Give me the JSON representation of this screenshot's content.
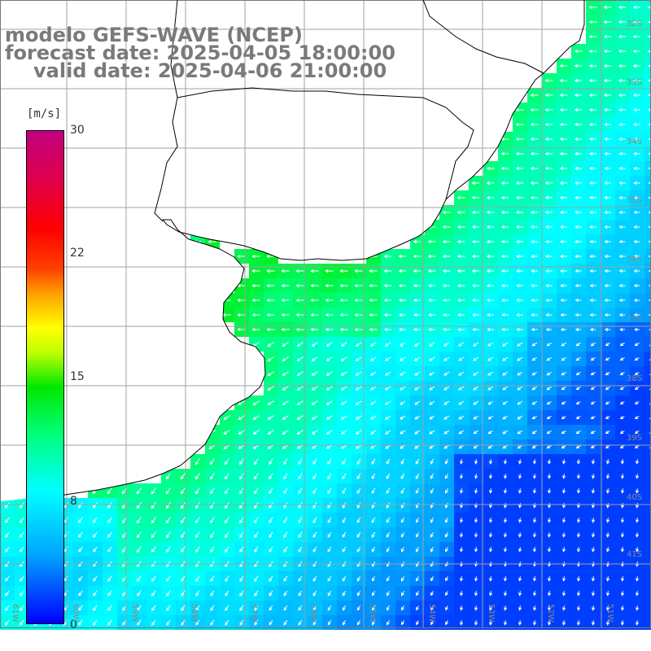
{
  "title": {
    "line1": "modelo GEFS-WAVE (NCEP)",
    "line2": "forecast date: 2025-04-05 18:00:00",
    "line3": "valid date: 2025-04-06 21:00:00"
  },
  "colorbar": {
    "unit": "[m/s]",
    "ticks": [
      "30",
      "22",
      "15",
      "8",
      "0"
    ],
    "min": 0,
    "max": 30
  },
  "map": {
    "lon_labels": [
      "61W",
      "60W",
      "59W",
      "58W",
      "57W",
      "56W",
      "55W",
      "54W",
      "53W",
      "52W",
      "51W"
    ],
    "lat_labels": [
      "32S",
      "33S",
      "34S",
      "35S",
      "36S",
      "37S",
      "38S",
      "39S",
      "40S",
      "41S"
    ],
    "colors": {
      "land": "#ffffff",
      "coastline": "#000000",
      "grid": "#a0a0a0",
      "arrows": "#ffffff"
    },
    "field": "wind speed",
    "arrow_direction": "predominantly from the east (pointing west / south-west)"
  }
}
